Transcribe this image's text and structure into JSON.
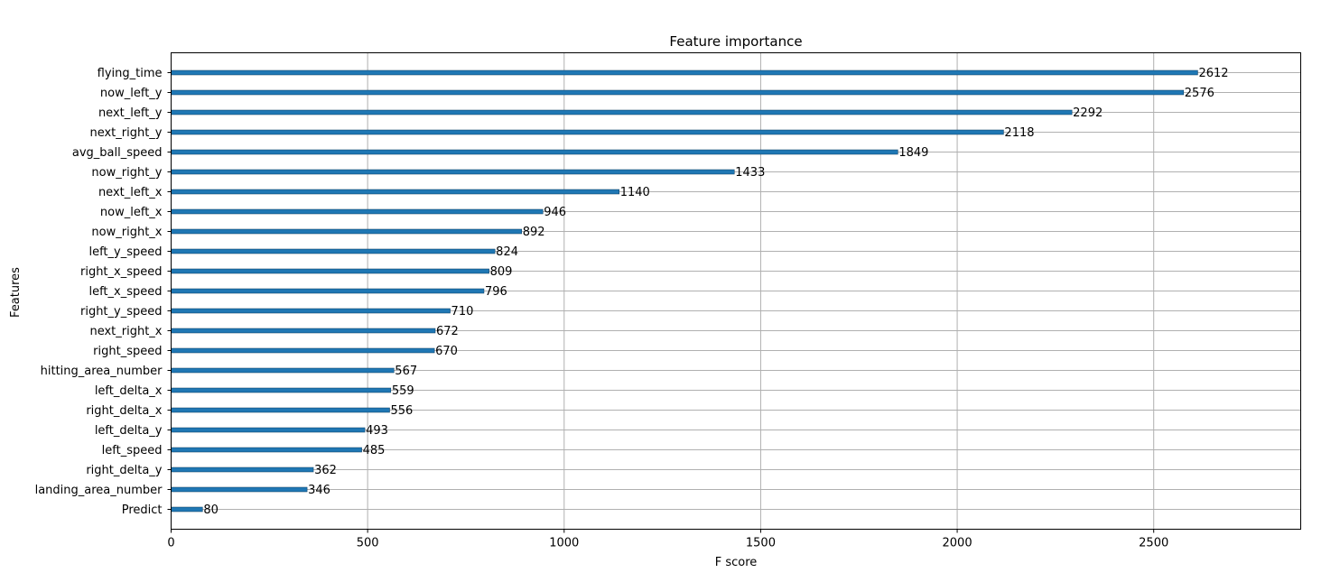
{
  "chart_data": {
    "type": "bar",
    "orientation": "horizontal",
    "title": "Feature importance",
    "xlabel": "F score",
    "ylabel": "Features",
    "xlim": [
      0,
      2874
    ],
    "xticks": [
      0,
      500,
      1000,
      1500,
      2000,
      2500
    ],
    "grid": true,
    "legend": "none",
    "colors": {
      "bar": "#1f77b4",
      "grid": "#b0b0b0",
      "axis": "#000000"
    },
    "categories": [
      "flying_time",
      "now_left_y",
      "next_left_y",
      "next_right_y",
      "avg_ball_speed",
      "now_right_y",
      "next_left_x",
      "now_left_x",
      "now_right_x",
      "left_y_speed",
      "right_x_speed",
      "left_x_speed",
      "right_y_speed",
      "next_right_x",
      "right_speed",
      "hitting_area_number",
      "left_delta_x",
      "right_delta_x",
      "left_delta_y",
      "left_speed",
      "right_delta_y",
      "landing_area_number",
      "Predict"
    ],
    "values": [
      2612,
      2576,
      2292,
      2118,
      1849,
      1433,
      1140,
      946,
      892,
      824,
      809,
      796,
      710,
      672,
      670,
      567,
      559,
      556,
      493,
      485,
      362,
      346,
      80
    ]
  }
}
